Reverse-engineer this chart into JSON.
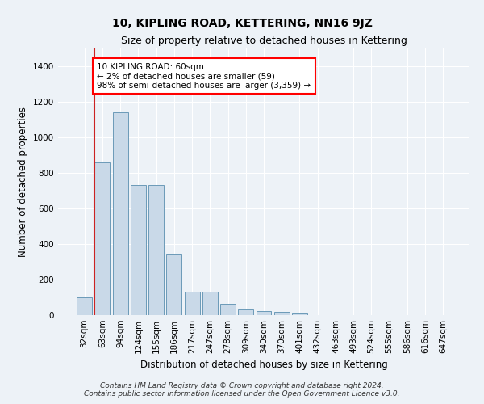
{
  "title": "10, KIPLING ROAD, KETTERING, NN16 9JZ",
  "subtitle": "Size of property relative to detached houses in Kettering",
  "xlabel": "Distribution of detached houses by size in Kettering",
  "ylabel": "Number of detached properties",
  "categories": [
    "32sqm",
    "63sqm",
    "94sqm",
    "124sqm",
    "155sqm",
    "186sqm",
    "217sqm",
    "247sqm",
    "278sqm",
    "309sqm",
    "340sqm",
    "370sqm",
    "401sqm",
    "432sqm",
    "463sqm",
    "493sqm",
    "524sqm",
    "555sqm",
    "586sqm",
    "616sqm",
    "647sqm"
  ],
  "values": [
    100,
    860,
    1140,
    730,
    730,
    345,
    130,
    130,
    65,
    32,
    22,
    18,
    14,
    0,
    0,
    0,
    0,
    0,
    0,
    0,
    0
  ],
  "highlight_bar_index": 1,
  "bar_color": "#c9d9e8",
  "bar_edge_color": "#6b9ab8",
  "highlight_color": "#cc2222",
  "ylim": [
    0,
    1500
  ],
  "yticks": [
    0,
    200,
    400,
    600,
    800,
    1000,
    1200,
    1400
  ],
  "annotation_text": "10 KIPLING ROAD: 60sqm\n← 2% of detached houses are smaller (59)\n98% of semi-detached houses are larger (3,359) →",
  "footer_line1": "Contains HM Land Registry data © Crown copyright and database right 2024.",
  "footer_line2": "Contains public sector information licensed under the Open Government Licence v3.0.",
  "bg_color": "#edf2f7",
  "plot_bg_color": "#edf2f7",
  "grid_color": "#ffffff",
  "title_fontsize": 10,
  "subtitle_fontsize": 9,
  "axis_label_fontsize": 8.5,
  "tick_fontsize": 7.5,
  "annotation_fontsize": 7.5,
  "footer_fontsize": 6.5
}
